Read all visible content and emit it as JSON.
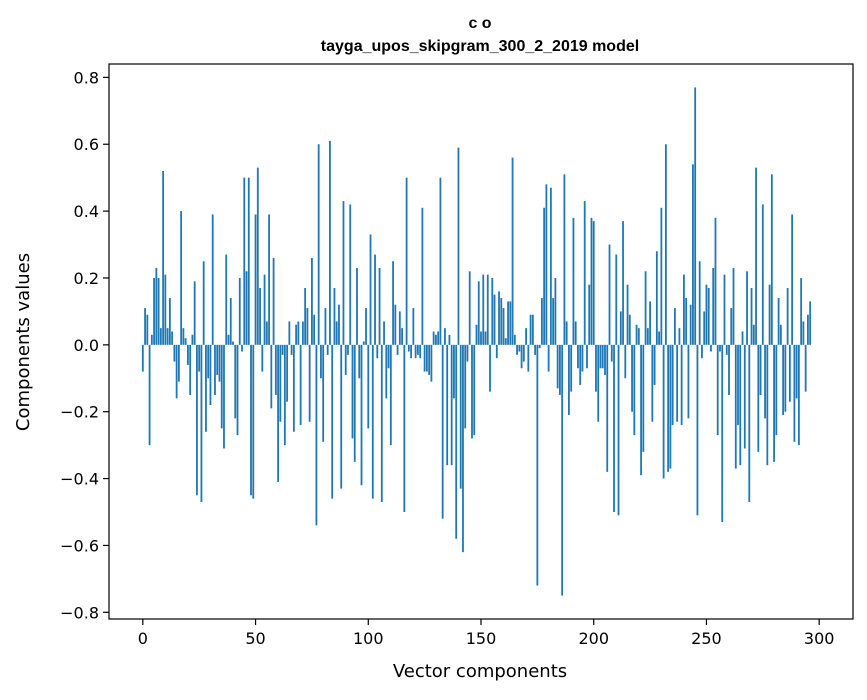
{
  "chart_data": {
    "type": "bar",
    "title": "c o",
    "subtitle": "tayga_upos_skipgram_300_2_2019 model",
    "xlabel": "Vector components",
    "ylabel": "Components values",
    "xlim": [
      -15,
      315
    ],
    "ylim": [
      -0.82,
      0.84
    ],
    "x_ticks": [
      0,
      50,
      100,
      150,
      200,
      250,
      300
    ],
    "y_ticks": [
      -0.8,
      -0.6,
      -0.4,
      -0.2,
      0.0,
      0.2,
      0.4,
      0.6,
      0.8
    ],
    "x_tick_labels": [
      "0",
      "50",
      "100",
      "150",
      "200",
      "250",
      "300"
    ],
    "y_tick_labels": [
      "−0.8",
      "−0.6",
      "−0.4",
      "−0.2",
      "0.0",
      "0.2",
      "0.4",
      "0.6",
      "0.8"
    ],
    "grid": false,
    "bar_color": "#1f77b4",
    "values": [
      -0.08,
      0.11,
      0.09,
      -0.3,
      0.03,
      0.2,
      0.23,
      0.2,
      0.05,
      0.52,
      0.21,
      0.05,
      0.14,
      0.04,
      -0.05,
      -0.16,
      -0.11,
      0.4,
      0.05,
      0.02,
      -0.06,
      -0.15,
      0.03,
      0.19,
      -0.45,
      -0.08,
      -0.47,
      0.25,
      -0.26,
      -0.1,
      -0.18,
      0.39,
      -0.15,
      -0.09,
      -0.11,
      -0.25,
      -0.31,
      0.27,
      0.03,
      0.14,
      0.01,
      -0.22,
      -0.27,
      0.2,
      -0.02,
      0.5,
      0.22,
      0.5,
      -0.45,
      -0.46,
      0.39,
      0.53,
      0.17,
      -0.08,
      0.21,
      0.07,
      0.39,
      -0.19,
      0.26,
      -0.15,
      -0.41,
      -0.23,
      -0.03,
      -0.3,
      -0.17,
      0.07,
      -0.03,
      -0.26,
      0.06,
      0.07,
      -0.24,
      0.07,
      0.17,
      0.11,
      -0.23,
      0.26,
      0.09,
      -0.54,
      0.6,
      -0.1,
      -0.29,
      0.11,
      -0.03,
      0.61,
      -0.46,
      0.17,
      0.07,
      0.12,
      -0.43,
      0.43,
      -0.09,
      -0.03,
      0.42,
      -0.28,
      -0.35,
      0.23,
      -0.1,
      -0.42,
      0.01,
      0.11,
      -0.25,
      0.33,
      -0.46,
      0.27,
      -0.04,
      0.23,
      -0.47,
      0.07,
      -0.16,
      -0.07,
      -0.3,
      0.25,
      0.12,
      -0.03,
      0.1,
      0.05,
      -0.5,
      0.5,
      -0.02,
      -0.04,
      0.11,
      -0.04,
      -0.03,
      -0.04,
      0.41,
      -0.08,
      -0.08,
      -0.09,
      -0.11,
      0.04,
      0.03,
      0.04,
      0.5,
      -0.52,
      0.05,
      -0.36,
      0.03,
      -0.36,
      -0.16,
      -0.58,
      0.59,
      -0.43,
      -0.62,
      -0.25,
      -0.05,
      0.22,
      -0.28,
      -0.27,
      0.06,
      0.19,
      0.04,
      0.21,
      0.04,
      0.21,
      -0.14,
      0.2,
      0.15,
      -0.04,
      0.16,
      0.14,
      0.11,
      0.02,
      0.13,
      0.13,
      0.56,
      0.03,
      -0.03,
      -0.02,
      -0.07,
      -0.05,
      0.05,
      -0.08,
      0.09,
      0.09,
      -0.03,
      -0.72,
      -0.01,
      0.14,
      0.41,
      0.48,
      -0.08,
      0.47,
      0.14,
      0.2,
      -0.13,
      -0.15,
      -0.75,
      0.51,
      0.07,
      -0.21,
      -0.14,
      0.38,
      0.07,
      -0.07,
      -0.12,
      -0.08,
      0.43,
      -0.07,
      0.18,
      0.38,
      0.37,
      -0.14,
      -0.23,
      -0.07,
      -0.07,
      -0.09,
      -0.38,
      0.3,
      -0.05,
      -0.5,
      0.27,
      -0.51,
      0.1,
      0.37,
      -0.1,
      0.18,
      0.09,
      -0.2,
      -0.27,
      0.06,
      0.05,
      -0.39,
      -0.32,
      0.22,
      0.05,
      0.13,
      -0.23,
      -0.12,
      0.28,
      0.04,
      0.41,
      -0.4,
      0.6,
      -0.38,
      -0.37,
      -0.24,
      0.11,
      -0.23,
      0.05,
      -0.24,
      0.21,
      0.14,
      -0.22,
      0.12,
      0.54,
      0.77,
      -0.51,
      0.25,
      -0.04,
      0.1,
      0.18,
      0.17,
      -0.02,
      0.23,
      0.38,
      -0.27,
      -0.02,
      -0.53,
      0.21,
      -0.03,
      -0.15,
      0.11,
      0.23,
      -0.37,
      -0.24,
      -0.36,
      0.04,
      -0.31,
      0.22,
      -0.47,
      0.17,
      0.06,
      0.53,
      -0.32,
      -0.15,
      0.42,
      -0.22,
      -0.36,
      0.18,
      0.51,
      -0.35,
      -0.27,
      0.14,
      0.06,
      -0.21,
      -0.2,
      0.17,
      -0.17,
      0.39,
      -0.29,
      -0.16,
      -0.3,
      0.2,
      0.07,
      -0.14,
      0.09,
      0.13
    ]
  }
}
